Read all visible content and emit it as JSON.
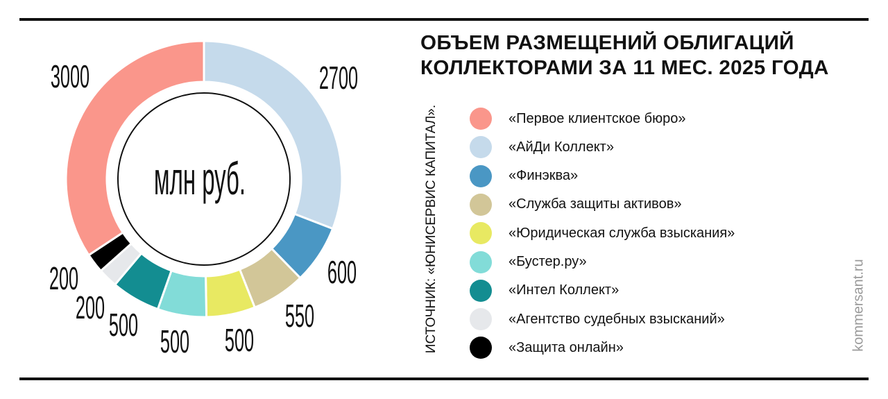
{
  "title": [
    "ОБЪЕМ РАЗМЕЩЕНИЙ ОБЛИГАЦИЙ",
    "КОЛЛЕКТОРАМИ ЗА 11 МЕС. 2025 ГОДА"
  ],
  "source": "ИСТОЧНИК: «ЮНИСЕРВИС КАПИТАЛ».",
  "brand": "kommersant.ru",
  "chart_data": {
    "type": "pie",
    "variant": "donut",
    "center_label": "млн руб.",
    "legend_position": "right",
    "series": [
      {
        "name": "«Первое клиентское бюро»",
        "value": 3000,
        "color": "#FA968B"
      },
      {
        "name": "«АйДи Коллект»",
        "value": 2700,
        "color": "#C5DAEB"
      },
      {
        "name": "«Финэква»",
        "value": 600,
        "color": "#4A97C4"
      },
      {
        "name": "«Служба защиты активов»",
        "value": 550,
        "color": "#D2C698"
      },
      {
        "name": "«Юридическая служба взыскания»",
        "value": 500,
        "color": "#E8E962"
      },
      {
        "name": "«Бустер.ру»",
        "value": 500,
        "color": "#82DCD8"
      },
      {
        "name": "«Интел Коллект»",
        "value": 500,
        "color": "#138D91"
      },
      {
        "name": "«Агентство судебных взысканий»",
        "value": 200,
        "color": "#E6E8EB"
      },
      {
        "name": "«Защита онлайн»",
        "value": 200,
        "color": "#000000"
      }
    ]
  }
}
